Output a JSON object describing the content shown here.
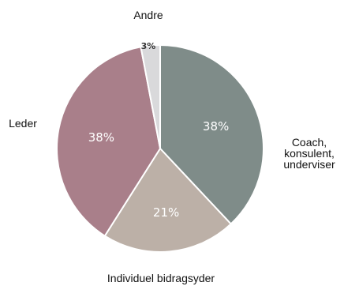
{
  "chart_data": {
    "type": "pie",
    "slices": [
      {
        "label": "Coach,\nkonsulent,\nunderviser",
        "value": 38,
        "value_label": "38%",
        "color": "#7f8c89"
      },
      {
        "label": "Individuel bidragsyder",
        "value": 21,
        "value_label": "21%",
        "color": "#bcb0a7"
      },
      {
        "label": "Leder",
        "value": 38,
        "value_label": "38%",
        "color": "#a97f8a"
      },
      {
        "label": "Andre",
        "value": 3,
        "value_label": "3%",
        "color": "#d9d9db"
      }
    ],
    "start_angle_deg": 0,
    "direction": "clockwise",
    "slice_border_color": "#ffffff"
  }
}
